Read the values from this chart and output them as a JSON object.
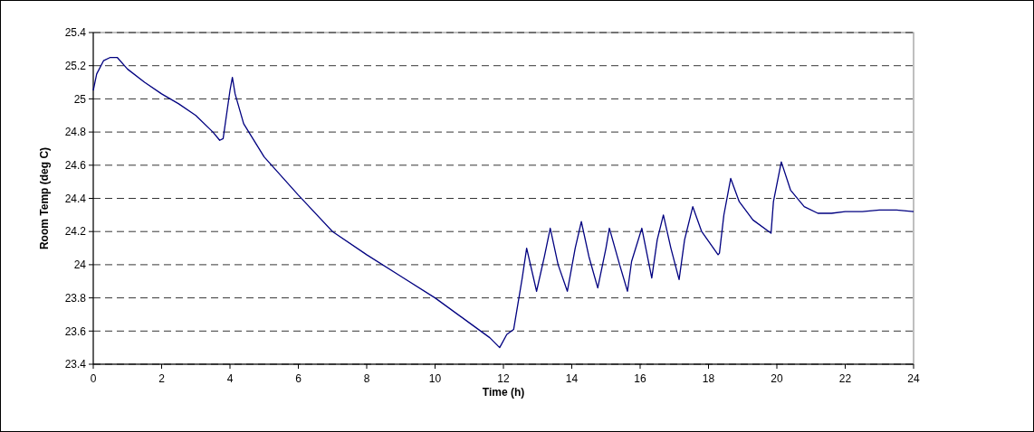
{
  "chart_data": {
    "type": "line",
    "xlabel": "Time (h)",
    "ylabel": "Room Temp (deg C)",
    "xlim": [
      0,
      24
    ],
    "xticks": [
      0,
      2,
      4,
      6,
      8,
      10,
      12,
      14,
      16,
      18,
      20,
      22,
      24
    ],
    "ylim": [
      23.4,
      25.4
    ],
    "yticks": [
      23.4,
      23.6,
      23.8,
      24,
      24.2,
      24.4,
      24.6,
      24.8,
      25,
      25.2,
      25.4
    ],
    "grid": "y",
    "marker": "none",
    "line_style": "solid",
    "series": [
      {
        "color": "#000080",
        "x": [
          0,
          0.1,
          0.3,
          0.5,
          0.7,
          1.0,
          1.5,
          2,
          2.5,
          3,
          3.5,
          3.7,
          3.8,
          4.0,
          4.07,
          4.15,
          4.4,
          5,
          6,
          7,
          8,
          9,
          10,
          11,
          11.6,
          11.89,
          12.1,
          12.3,
          12.55,
          12.68,
          12.97,
          13.2,
          13.37,
          13.6,
          13.87,
          14.1,
          14.28,
          14.5,
          14.76,
          15.0,
          15.1,
          15.4,
          15.63,
          15.75,
          16.05,
          16.34,
          16.5,
          16.68,
          16.9,
          17.14,
          17.3,
          17.54,
          17.8,
          18.28,
          18.32,
          18.45,
          18.65,
          18.9,
          19.3,
          19.83,
          19.9,
          20.13,
          20.4,
          20.8,
          21.2,
          21.6,
          22,
          22.5,
          23,
          23.5,
          24
        ],
        "values": [
          25.05,
          25.15,
          25.23,
          25.25,
          25.25,
          25.18,
          25.1,
          25.03,
          24.97,
          24.9,
          24.8,
          24.75,
          24.76,
          25.05,
          25.13,
          25.03,
          24.85,
          24.65,
          24.42,
          24.2,
          24.06,
          23.93,
          23.8,
          23.65,
          23.56,
          23.5,
          23.58,
          23.61,
          23.92,
          24.1,
          23.84,
          24.05,
          24.22,
          24.0,
          23.84,
          24.1,
          24.26,
          24.05,
          23.86,
          24.1,
          24.22,
          24.0,
          23.84,
          24.02,
          24.22,
          23.92,
          24.15,
          24.3,
          24.1,
          23.91,
          24.15,
          24.35,
          24.2,
          24.06,
          24.07,
          24.3,
          24.52,
          24.38,
          24.27,
          24.19,
          24.38,
          24.62,
          24.45,
          24.35,
          24.31,
          24.31,
          24.32,
          24.32,
          24.33,
          24.33,
          24.32
        ]
      }
    ]
  }
}
